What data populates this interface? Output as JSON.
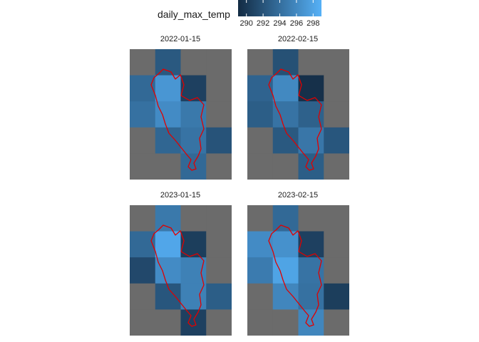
{
  "legend": {
    "title": "daily_max_temp",
    "range": [
      289,
      299
    ],
    "ticks": [
      290,
      292,
      294,
      296,
      298
    ],
    "colors": {
      "low": "#132B43",
      "high": "#56B1F7",
      "na": "#6b6b6b",
      "outline": "#e00000"
    }
  },
  "chart_data": {
    "type": "heatmap",
    "variable": "daily_max_temp",
    "grid": {
      "rows": 5,
      "cols": 4
    },
    "panels": [
      {
        "title": "2022-01-15",
        "values": [
          [
            null,
            292.4,
            null,
            null
          ],
          [
            293.6,
            297.0,
            290.6,
            null
          ],
          [
            294.2,
            296.2,
            294.8,
            null
          ],
          [
            null,
            293.4,
            294.4,
            292.0
          ],
          [
            null,
            null,
            293.6,
            null
          ]
        ]
      },
      {
        "title": "2022-02-15",
        "values": [
          [
            null,
            291.8,
            null,
            null
          ],
          [
            293.2,
            296.0,
            289.4,
            null
          ],
          [
            292.8,
            294.4,
            293.0,
            null
          ],
          [
            null,
            292.4,
            294.6,
            292.2
          ],
          [
            null,
            null,
            292.8,
            null
          ]
        ]
      },
      {
        "title": "2023-01-15",
        "values": [
          [
            null,
            294.8,
            null,
            null
          ],
          [
            293.6,
            298.2,
            290.4,
            null
          ],
          [
            291.2,
            296.2,
            295.4,
            null
          ],
          [
            null,
            292.2,
            295.4,
            292.8
          ],
          [
            null,
            null,
            290.6,
            null
          ]
        ]
      },
      {
        "title": "2023-02-15",
        "values": [
          [
            null,
            293.6,
            null,
            null
          ],
          [
            296.2,
            296.6,
            290.6,
            null
          ],
          [
            295.0,
            298.0,
            294.4,
            null
          ],
          [
            null,
            295.8,
            294.2,
            290.4
          ],
          [
            null,
            null,
            295.8,
            null
          ]
        ]
      }
    ]
  }
}
